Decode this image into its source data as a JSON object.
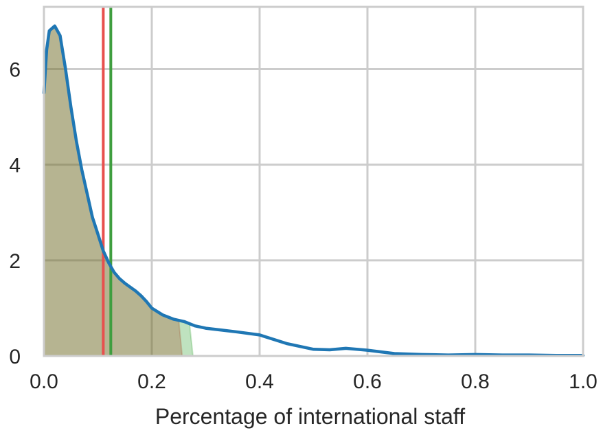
{
  "chart_data": {
    "type": "area",
    "title": "",
    "xlabel": "Percentage of international staff",
    "ylabel": "",
    "xlim": [
      0.0,
      1.0
    ],
    "ylim": [
      0,
      7.3
    ],
    "grid": true,
    "xticks": [
      0.0,
      0.2,
      0.4,
      0.6,
      0.8,
      1.0
    ],
    "xtick_labels": [
      "0.0",
      "0.2",
      "0.4",
      "0.6",
      "0.8",
      "1.0"
    ],
    "yticks": [
      0,
      2,
      4,
      6
    ],
    "ytick_labels": [
      "0",
      "2",
      "4",
      "6"
    ],
    "density_curve": {
      "color": "#1f77b4",
      "x": [
        0.0,
        0.005,
        0.01,
        0.02,
        0.03,
        0.04,
        0.05,
        0.06,
        0.07,
        0.08,
        0.09,
        0.1,
        0.11,
        0.12,
        0.13,
        0.14,
        0.15,
        0.16,
        0.17,
        0.18,
        0.19,
        0.2,
        0.22,
        0.24,
        0.26,
        0.28,
        0.3,
        0.33,
        0.36,
        0.4,
        0.45,
        0.5,
        0.53,
        0.56,
        0.6,
        0.65,
        0.7,
        0.75,
        0.8,
        0.85,
        0.9,
        0.95,
        1.0
      ],
      "y": [
        5.5,
        6.4,
        6.8,
        6.9,
        6.7,
        6.0,
        5.2,
        4.5,
        3.9,
        3.4,
        2.9,
        2.55,
        2.2,
        1.95,
        1.75,
        1.62,
        1.52,
        1.44,
        1.36,
        1.26,
        1.14,
        1.0,
        0.86,
        0.77,
        0.72,
        0.63,
        0.58,
        0.54,
        0.5,
        0.44,
        0.26,
        0.14,
        0.13,
        0.16,
        0.12,
        0.05,
        0.03,
        0.02,
        0.03,
        0.02,
        0.02,
        0.01,
        0.01
      ]
    },
    "shaded_regions": [
      {
        "color": "#d62728",
        "x_end": 0.25
      },
      {
        "color": "#2ca02c",
        "x_end": 0.27
      }
    ],
    "vertical_lines": [
      {
        "color": "#e8504e",
        "x": 0.11
      },
      {
        "color": "#3f9e3f",
        "x": 0.124
      }
    ],
    "colors": {
      "grid": "#cccccc",
      "fill": "#8a9a5b"
    }
  }
}
